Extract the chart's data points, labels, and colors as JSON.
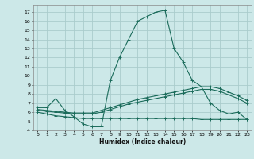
{
  "xlabel": "Humidex (Indice chaleur)",
  "background_color": "#cce8e8",
  "grid_color": "#aacccc",
  "line_color": "#1a6b5a",
  "xlim": [
    -0.5,
    23.5
  ],
  "ylim": [
    4,
    17.8
  ],
  "yticks": [
    4,
    5,
    6,
    7,
    8,
    9,
    10,
    11,
    12,
    13,
    14,
    15,
    16,
    17
  ],
  "xticks": [
    0,
    1,
    2,
    3,
    4,
    5,
    6,
    7,
    8,
    9,
    10,
    11,
    12,
    13,
    14,
    15,
    16,
    17,
    18,
    19,
    20,
    21,
    22,
    23
  ],
  "series": [
    {
      "x": [
        0,
        1,
        2,
        3,
        4,
        5,
        6,
        7,
        8,
        9,
        10,
        11,
        12,
        13,
        14,
        15,
        16,
        17,
        18,
        19,
        20,
        21,
        22,
        23
      ],
      "y": [
        6.5,
        6.5,
        7.5,
        6.2,
        5.5,
        4.7,
        4.4,
        4.4,
        9.5,
        12.0,
        14.0,
        16.0,
        16.5,
        17.0,
        17.2,
        13.0,
        11.5,
        9.5,
        8.8,
        7.0,
        6.2,
        5.8,
        6.0,
        5.2
      ]
    },
    {
      "x": [
        0,
        1,
        2,
        3,
        4,
        5,
        6,
        7,
        8,
        9,
        10,
        11,
        12,
        13,
        14,
        15,
        16,
        17,
        18,
        19,
        20,
        21,
        22,
        23
      ],
      "y": [
        6.3,
        6.2,
        6.1,
        6.0,
        5.9,
        5.9,
        5.9,
        6.2,
        6.5,
        6.8,
        7.1,
        7.4,
        7.6,
        7.8,
        8.0,
        8.2,
        8.4,
        8.6,
        8.8,
        8.8,
        8.6,
        8.2,
        7.8,
        7.3
      ]
    },
    {
      "x": [
        0,
        1,
        2,
        3,
        4,
        5,
        6,
        7,
        8,
        9,
        10,
        11,
        12,
        13,
        14,
        15,
        16,
        17,
        18,
        19,
        20,
        21,
        22,
        23
      ],
      "y": [
        6.2,
        6.1,
        6.0,
        5.9,
        5.8,
        5.8,
        5.8,
        6.0,
        6.3,
        6.6,
        6.9,
        7.1,
        7.3,
        7.5,
        7.7,
        7.9,
        8.1,
        8.3,
        8.5,
        8.5,
        8.3,
        7.9,
        7.5,
        7.0
      ]
    },
    {
      "x": [
        0,
        1,
        2,
        3,
        4,
        5,
        6,
        7,
        8,
        9,
        10,
        11,
        12,
        13,
        14,
        15,
        16,
        17,
        18,
        19,
        20,
        21,
        22,
        23
      ],
      "y": [
        6.0,
        5.8,
        5.6,
        5.5,
        5.4,
        5.3,
        5.3,
        5.3,
        5.3,
        5.3,
        5.3,
        5.3,
        5.3,
        5.3,
        5.3,
        5.3,
        5.3,
        5.3,
        5.2,
        5.2,
        5.2,
        5.2,
        5.2,
        5.2
      ]
    }
  ]
}
